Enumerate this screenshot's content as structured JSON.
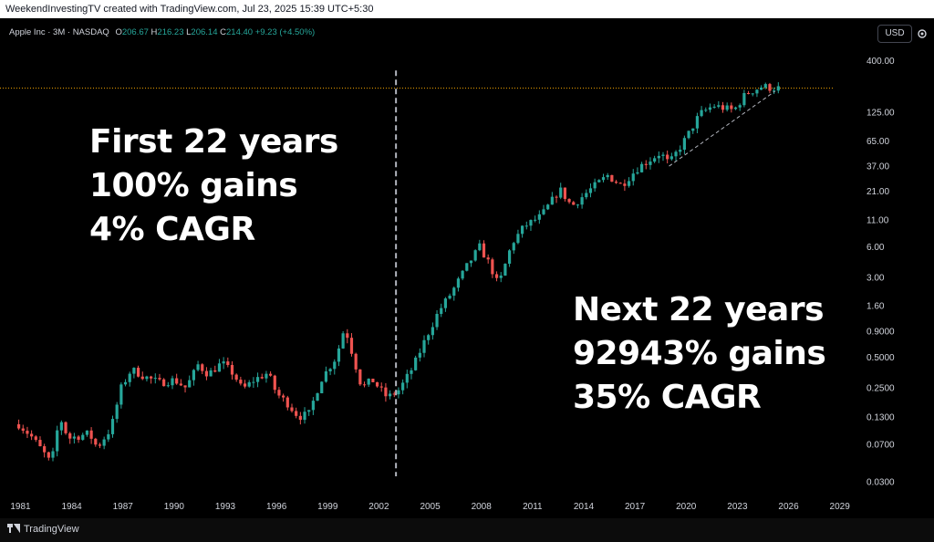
{
  "header": {
    "attribution": "WeekendInvestingTV created with TradingView.com, Jul 23, 2025 15:39 UTC+5:30"
  },
  "legend": {
    "symbol": "Apple Inc · 3M · NASDAQ",
    "open_label": "O",
    "open": "206.67",
    "high_label": "H",
    "high": "216.23",
    "low_label": "L",
    "low": "206.14",
    "close_label": "C",
    "close": "214.40",
    "change": "+9.23 (+4.50%)"
  },
  "currency_button": "USD",
  "annotations": {
    "left": [
      "First 22 years",
      "100% gains",
      "4% CAGR"
    ],
    "right": [
      "Next 22 years",
      "92943% gains",
      "35% CAGR"
    ]
  },
  "footer": {
    "brand": "TradingView"
  },
  "colors": {
    "up": "#26a69a",
    "down": "#ef5350",
    "background": "#000000",
    "axis_text": "#d1d4dc",
    "price_line": "#f7a600"
  },
  "chart_data": {
    "type": "candlestick",
    "title": "Apple Inc · 3M · NASDAQ",
    "y_scale": "log",
    "x_ticks": [
      "1981",
      "1984",
      "1987",
      "1990",
      "1993",
      "1996",
      "1999",
      "2002",
      "2005",
      "2008",
      "2011",
      "2014",
      "2017",
      "2020",
      "2023",
      "2026",
      "2029"
    ],
    "y_ticks": [
      "400.00",
      "125.00",
      "65.00",
      "37.00",
      "21.00",
      "11.00",
      "6.00",
      "3.00",
      "1.60",
      "0.9000",
      "0.5000",
      "0.2500",
      "0.1300",
      "0.0700",
      "0.0300"
    ],
    "xlim": [
      1979.8,
      2030.3
    ],
    "ylim": [
      0.0235,
      560
    ],
    "vertical_marker_year": 2003,
    "last_price": 214.4,
    "trendline": {
      "from": [
        2019.0,
        37
      ],
      "to": [
        2025.2,
        200
      ]
    },
    "anchors": [
      [
        1980.9,
        0.11
      ],
      [
        1981.6,
        0.085
      ],
      [
        1982.3,
        0.06
      ],
      [
        1982.8,
        0.045
      ],
      [
        1983.3,
        0.13
      ],
      [
        1983.8,
        0.08
      ],
      [
        1984.5,
        0.085
      ],
      [
        1985.0,
        0.09
      ],
      [
        1985.5,
        0.065
      ],
      [
        1986.3,
        0.1
      ],
      [
        1986.9,
        0.25
      ],
      [
        1987.5,
        0.38
      ],
      [
        1988.3,
        0.32
      ],
      [
        1989.2,
        0.28
      ],
      [
        1990.0,
        0.3
      ],
      [
        1990.7,
        0.25
      ],
      [
        1991.4,
        0.42
      ],
      [
        1992.0,
        0.34
      ],
      [
        1992.8,
        0.44
      ],
      [
        1993.5,
        0.34
      ],
      [
        1994.0,
        0.24
      ],
      [
        1994.7,
        0.3
      ],
      [
        1995.5,
        0.35
      ],
      [
        1996.0,
        0.22
      ],
      [
        1996.6,
        0.18
      ],
      [
        1997.3,
        0.13
      ],
      [
        1997.9,
        0.14
      ],
      [
        1998.6,
        0.3
      ],
      [
        1999.5,
        0.5
      ],
      [
        2000.0,
        1.0
      ],
      [
        2000.5,
        0.5
      ],
      [
        2001.0,
        0.25
      ],
      [
        2001.6,
        0.3
      ],
      [
        2002.5,
        0.2
      ],
      [
        2003.2,
        0.24
      ],
      [
        2004.0,
        0.4
      ],
      [
        2004.8,
        0.8
      ],
      [
        2005.5,
        1.4
      ],
      [
        2006.3,
        2.2
      ],
      [
        2007.2,
        4.0
      ],
      [
        2007.9,
        6.0
      ],
      [
        2008.5,
        4.0
      ],
      [
        2009.0,
        2.5
      ],
      [
        2009.8,
        6.5
      ],
      [
        2010.5,
        9.5
      ],
      [
        2011.5,
        12.0
      ],
      [
        2012.6,
        22.0
      ],
      [
        2013.3,
        15.0
      ],
      [
        2014.4,
        22.0
      ],
      [
        2015.4,
        30.0
      ],
      [
        2016.2,
        24.0
      ],
      [
        2017.2,
        36.0
      ],
      [
        2018.5,
        50.0
      ],
      [
        2019.0,
        39.0
      ],
      [
        2020.0,
        70.0
      ],
      [
        2020.8,
        120.0
      ],
      [
        2021.6,
        145.0
      ],
      [
        2022.8,
        130.0
      ],
      [
        2023.5,
        190.0
      ],
      [
        2024.5,
        225.0
      ],
      [
        2025.0,
        215.0
      ],
      [
        2025.5,
        214.4
      ]
    ]
  }
}
